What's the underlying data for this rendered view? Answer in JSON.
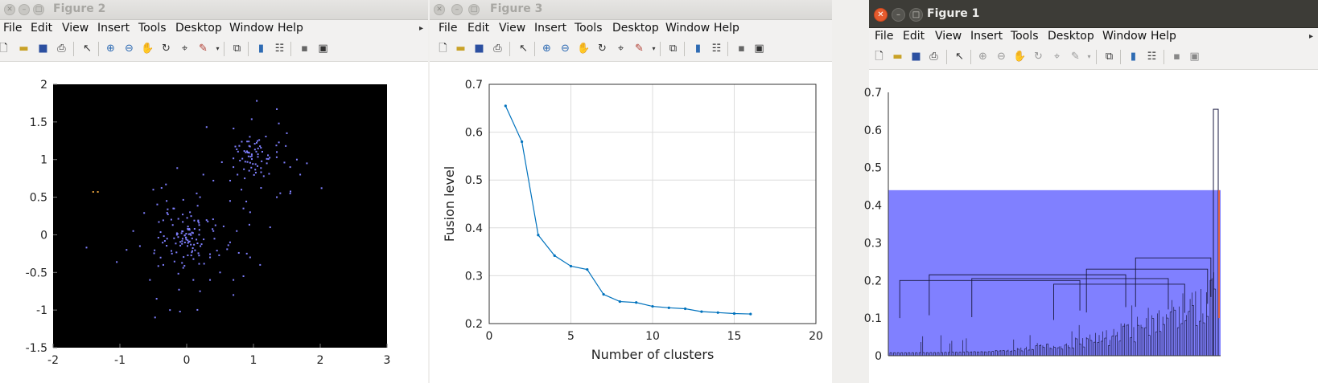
{
  "windows": {
    "figure2": {
      "title": "Figure 2"
    },
    "figure3": {
      "title": "Figure 3"
    },
    "figure1": {
      "title": "Figure 1"
    }
  },
  "menu": {
    "file": "File",
    "edit": "Edit",
    "view": "View",
    "insert": "Insert",
    "tools": "Tools",
    "desktop": "Desktop",
    "window": "Window",
    "help": "Help"
  },
  "icons": [
    "new-figure-icon",
    "open-icon",
    "save-icon",
    "print-icon",
    "pointer-icon",
    "zoom-in-icon",
    "zoom-out-icon",
    "pan-icon",
    "rotate-icon",
    "data-cursor-icon",
    "brush-icon",
    "link-icon",
    "colorbar-icon",
    "legend-icon",
    "hide-tools-icon",
    "show-tools-icon"
  ],
  "colors": {
    "points": "#7f7fff",
    "outlier": "#e8a33c",
    "line": "#0072bd",
    "dendro_fill": "#8080ff",
    "dendro_edge": "#e06040",
    "scatter_bg": "#000000"
  },
  "chart_data": [
    {
      "type": "scatter",
      "figure": "Figure 2",
      "title": "",
      "xlim": [
        -2,
        3
      ],
      "ylim": [
        -1.5,
        2
      ],
      "xticks": [
        "-2",
        "-1",
        "0",
        "1",
        "2",
        "3"
      ],
      "yticks": [
        "-1.5",
        "-1",
        "-0.5",
        "0",
        "0.5",
        "1",
        "1.5",
        "2"
      ],
      "background": "black",
      "grid": false,
      "series": [
        {
          "color": "#7f7fff",
          "clusters": [
            {
              "center": [
                0.0,
                0.0
              ],
              "spread": 0.22,
              "count": 120
            },
            {
              "center": [
                1.0,
                1.0
              ],
              "spread": 0.18,
              "count": 75
            }
          ],
          "points": [
            [
              1.05,
              1.78
            ],
            [
              1.35,
              1.67
            ],
            [
              1.38,
              1.48
            ],
            [
              0.65,
              0.45
            ],
            [
              0.82,
              0.6
            ],
            [
              0.7,
              0.9
            ],
            [
              0.4,
              0.72
            ],
            [
              1.55,
              0.55
            ],
            [
              1.35,
              0.5
            ],
            [
              -0.5,
              0.6
            ],
            [
              -0.3,
              0.45
            ],
            [
              0.15,
              0.55
            ],
            [
              0.25,
              0.8
            ],
            [
              0.2,
              0.5
            ],
            [
              1.8,
              0.95
            ],
            [
              1.7,
              0.8
            ],
            [
              2.02,
              0.62
            ],
            [
              1.65,
              1.0
            ],
            [
              1.55,
              0.9
            ],
            [
              1.2,
              0.95
            ],
            [
              0.95,
              0.3
            ],
            [
              0.75,
              0.05
            ],
            [
              0.65,
              -0.1
            ],
            [
              0.9,
              -0.25
            ],
            [
              0.7,
              -0.6
            ],
            [
              0.5,
              -0.5
            ],
            [
              0.35,
              -0.6
            ],
            [
              0.85,
              -0.55
            ],
            [
              0.95,
              -0.3
            ],
            [
              1.1,
              -0.4
            ],
            [
              -0.9,
              -0.2
            ],
            [
              -0.7,
              -0.15
            ],
            [
              -0.55,
              -0.6
            ],
            [
              -0.45,
              -0.85
            ],
            [
              -0.25,
              -1.0
            ],
            [
              -0.1,
              -1.02
            ],
            [
              0.2,
              -0.75
            ],
            [
              -0.35,
              -0.4
            ],
            [
              -1.5,
              -0.17
            ],
            [
              0.7,
              -0.8
            ],
            [
              0.1,
              -0.6
            ],
            [
              -0.8,
              0.05
            ],
            [
              0.4,
              0.05
            ],
            [
              0.35,
              -0.3
            ],
            [
              -0.2,
              0.35
            ],
            [
              0.05,
              0.3
            ],
            [
              0.85,
              0.35
            ],
            [
              1.25,
              0.1
            ],
            [
              1.5,
              1.35
            ],
            [
              1.35,
              1.1
            ]
          ]
        },
        {
          "color": "#e8a33c",
          "points": [
            [
              -1.4,
              0.57
            ],
            [
              -1.33,
              0.57
            ]
          ]
        }
      ]
    },
    {
      "type": "line",
      "figure": "Figure 3",
      "title": "",
      "xlabel": "Number of clusters",
      "ylabel": "Fusion level",
      "xlim": [
        0,
        20
      ],
      "ylim": [
        0.2,
        0.7
      ],
      "xticks": [
        "0",
        "5",
        "10",
        "15",
        "20"
      ],
      "yticks": [
        "0.2",
        "0.3",
        "0.4",
        "0.5",
        "0.6",
        "0.7"
      ],
      "grid": true,
      "x": [
        1,
        2,
        3,
        4,
        5,
        6,
        7,
        8,
        9,
        10,
        11,
        12,
        13,
        14,
        15,
        16
      ],
      "y": [
        0.655,
        0.58,
        0.385,
        0.342,
        0.32,
        0.313,
        0.261,
        0.246,
        0.244,
        0.236,
        0.233,
        0.231,
        0.225,
        0.223,
        0.221,
        0.22
      ]
    },
    {
      "type": "dendrogram",
      "figure": "Figure 1",
      "title": "",
      "ylim": [
        0,
        0.7
      ],
      "yticks": [
        "0",
        "0.1",
        "0.2",
        "0.3",
        "0.4",
        "0.5",
        "0.6",
        "0.7"
      ],
      "threshold": 0.44,
      "max_height": 0.655,
      "fill_color": "#8080ff"
    }
  ]
}
